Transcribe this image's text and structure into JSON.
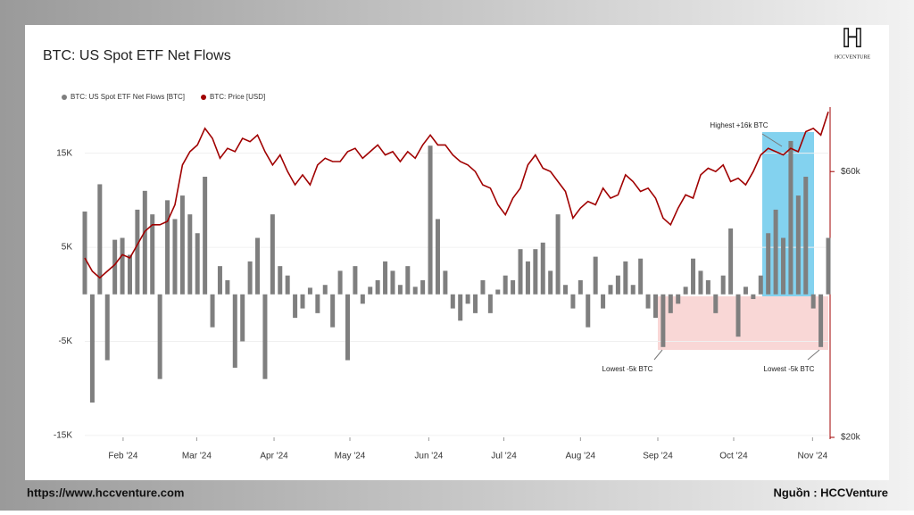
{
  "brand": {
    "logo": "HCCVENTURE",
    "url": "https://www.hccventure.com",
    "source": "Nguồn : HCCVenture"
  },
  "chart_data": {
    "type": "bar",
    "title": "BTC: US Spot ETF Net Flows",
    "xlim": [
      0,
      99
    ],
    "xticks": [
      {
        "value": 5.1,
        "label": "Feb '24"
      },
      {
        "value": 14.9,
        "label": "Mar '24"
      },
      {
        "value": 25.2,
        "label": "Apr '24"
      },
      {
        "value": 35.3,
        "label": "May '24"
      },
      {
        "value": 45.8,
        "label": "Jun '24"
      },
      {
        "value": 55.8,
        "label": "Jul '24"
      },
      {
        "value": 66.0,
        "label": "Aug '24"
      },
      {
        "value": 76.3,
        "label": "Sep '24"
      },
      {
        "value": 86.4,
        "label": "Oct '24"
      },
      {
        "value": 96.9,
        "label": "Nov '24"
      }
    ],
    "ylim": [
      -15200,
      19900
    ],
    "yticks": [
      {
        "value": 15000,
        "label": "15K"
      },
      {
        "value": 5000,
        "label": "5K"
      },
      {
        "value": -5000,
        "label": "-5K"
      },
      {
        "value": -15000,
        "label": "-15K"
      }
    ],
    "y2lim": [
      20000,
      69700
    ],
    "y2ticks": [
      {
        "value": 60000,
        "label": "$60k"
      },
      {
        "value": 20000,
        "label": "$20k"
      }
    ],
    "grid": true,
    "annotations": [
      "Highest +16k BTC",
      "Lowest -5k BTC",
      "Lowest -5k BTC"
    ],
    "series": [
      {
        "name": "BTC: US Spot ETF Net Flows [BTC]",
        "type": "bar",
        "axis": "y",
        "color": "#7f7f7f",
        "values": [
          8800,
          -11500,
          11700,
          -7000,
          5800,
          6000,
          4200,
          9000,
          11000,
          8500,
          -9000,
          10000,
          8000,
          10500,
          8500,
          6500,
          12500,
          -3500,
          3000,
          1500,
          -7800,
          -5000,
          3500,
          6000,
          -9000,
          8500,
          3000,
          2000,
          -2500,
          -1500,
          700,
          -2000,
          1000,
          -3500,
          2500,
          -7000,
          3000,
          -1000,
          800,
          1500,
          3500,
          2500,
          1000,
          3000,
          800,
          1500,
          15800,
          8000,
          2500,
          -1500,
          -2800,
          -1000,
          -2000,
          1500,
          -2000,
          500,
          2000,
          1500,
          4800,
          3500,
          4800,
          5500,
          2500,
          8500,
          1000,
          -1500,
          1500,
          -3500,
          4000,
          -1500,
          1000,
          2000,
          3500,
          1000,
          3800,
          -1500,
          -2500,
          -5600,
          -2000,
          -1000,
          800,
          3800,
          2500,
          1500,
          -2000,
          2000,
          7000,
          -4500,
          800,
          -500,
          2000,
          6500,
          9000,
          6000,
          16300,
          10500,
          12500,
          -1500,
          -5600,
          6000
        ]
      },
      {
        "name": "BTC: Price [USD]",
        "type": "line",
        "axis": "y2",
        "color": "#a00000",
        "values": [
          47000,
          45000,
          44000,
          45000,
          46000,
          47500,
          47000,
          49000,
          51000,
          52000,
          52000,
          52500,
          55000,
          61000,
          63000,
          64000,
          66500,
          65000,
          62000,
          63500,
          63000,
          65000,
          64500,
          65500,
          63000,
          61000,
          62500,
          60000,
          58000,
          59500,
          58000,
          61000,
          62000,
          61500,
          61500,
          63000,
          63500,
          62000,
          63000,
          64000,
          62500,
          63000,
          61500,
          63000,
          62000,
          64000,
          65500,
          64000,
          64000,
          62500,
          61500,
          61000,
          60000,
          58000,
          57500,
          55000,
          53500,
          56000,
          57500,
          61000,
          62500,
          60500,
          60000,
          58500,
          57000,
          53000,
          54500,
          55500,
          55000,
          57500,
          56000,
          56500,
          59500,
          58500,
          57000,
          57500,
          56000,
          53000,
          52000,
          54500,
          56500,
          56000,
          59500,
          60500,
          60000,
          61000,
          58500,
          59000,
          58000,
          60000,
          62500,
          63500,
          63000,
          62500,
          63500,
          63000,
          66000,
          66500,
          65500,
          69000
        ]
      }
    ]
  }
}
